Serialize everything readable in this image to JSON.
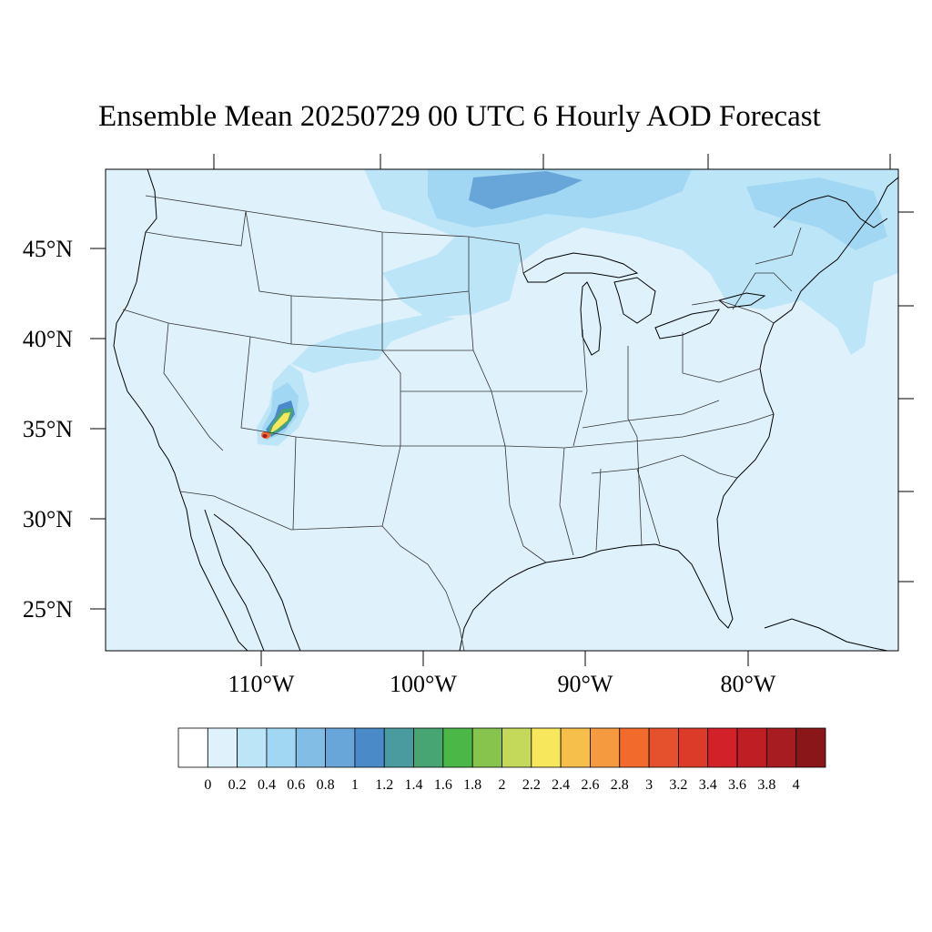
{
  "title": "Ensemble Mean 20250729 00 UTC 6 Hourly AOD Forecast",
  "map": {
    "lat_labels": [
      "45°N",
      "40°N",
      "35°N",
      "30°N",
      "25°N"
    ],
    "lon_labels": [
      "110°W",
      "100°W",
      "90°W",
      "80°W"
    ],
    "background_color": "#dff1fb",
    "coastline_color": "#000000",
    "state_border_color": "#333333"
  },
  "colorbar": {
    "colors": [
      "#ffffff",
      "#dff1fb",
      "#bde5f8",
      "#a1d7f2",
      "#82bde6",
      "#68a6d9",
      "#4a8ac9",
      "#4a9ba0",
      "#46a572",
      "#4bb747",
      "#86c44d",
      "#c4d85a",
      "#f6e75d",
      "#f6bf4c",
      "#f59a3f",
      "#f26a2c",
      "#e5502d",
      "#dc3b2a",
      "#d22128",
      "#be1e24",
      "#a61c20",
      "#8b1619"
    ],
    "labels": [
      "0",
      "0.2",
      "0.4",
      "0.6",
      "0.8",
      "1",
      "1.2",
      "1.4",
      "1.6",
      "1.8",
      "2",
      "2.2",
      "2.4",
      "2.6",
      "2.8",
      "3",
      "3.2",
      "3.4",
      "3.6",
      "3.8",
      "4"
    ]
  },
  "plumes": {
    "smoke_color_light": "#bde5f8",
    "smoke_color_mid": "#a1d7f2",
    "smoke_color_dark": "#68a6d9"
  }
}
